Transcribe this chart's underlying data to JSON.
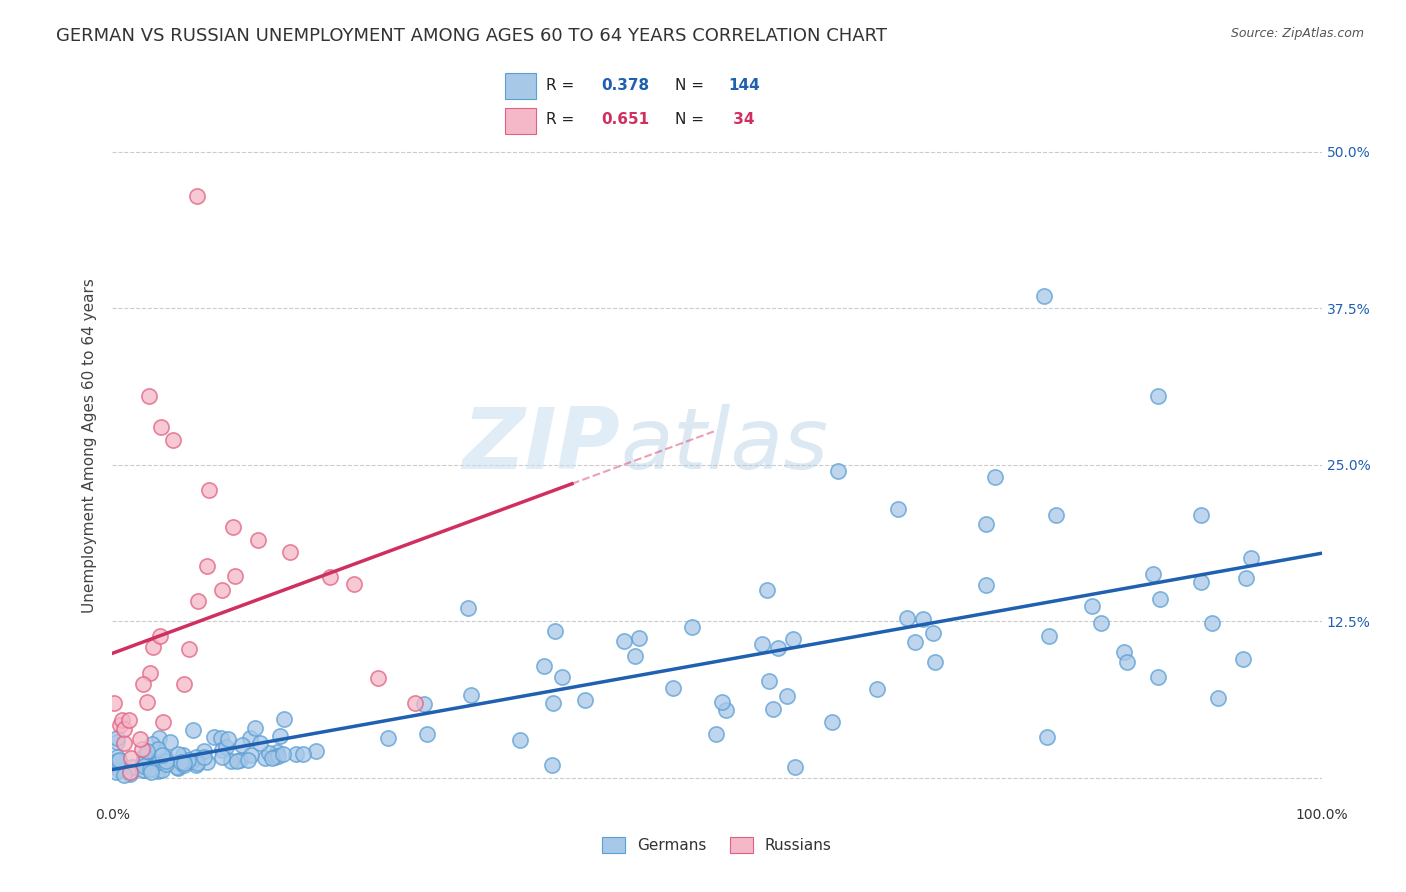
{
  "title": "GERMAN VS RUSSIAN UNEMPLOYMENT AMONG AGES 60 TO 64 YEARS CORRELATION CHART",
  "source": "Source: ZipAtlas.com",
  "ylabel": "Unemployment Among Ages 60 to 64 years",
  "xlim": [
    0,
    1.0
  ],
  "ylim": [
    -0.02,
    0.55
  ],
  "x_ticks": [
    0.0,
    0.125,
    0.25,
    0.375,
    0.5,
    0.625,
    0.75,
    0.875,
    1.0
  ],
  "x_tick_labels": [
    "0.0%",
    "",
    "",
    "",
    "",
    "",
    "",
    "",
    "100.0%"
  ],
  "y_ticks": [
    0.0,
    0.125,
    0.25,
    0.375,
    0.5
  ],
  "y_tick_labels": [
    "",
    "12.5%",
    "25.0%",
    "37.5%",
    "50.0%"
  ],
  "german_color": "#a8c8e8",
  "german_edge_color": "#5a9fd4",
  "russian_color": "#f4b8c8",
  "russian_edge_color": "#e06080",
  "german_line_color": "#2060b0",
  "russian_line_color": "#d03060",
  "background_color": "#ffffff",
  "grid_color": "#cccccc",
  "watermark_zip": "ZIP",
  "watermark_atlas": "atlas",
  "title_fontsize": 13,
  "label_fontsize": 11,
  "tick_fontsize": 10,
  "legend_r1": "0.378",
  "legend_n1": "144",
  "legend_r2": "0.651",
  "legend_n2": " 34"
}
